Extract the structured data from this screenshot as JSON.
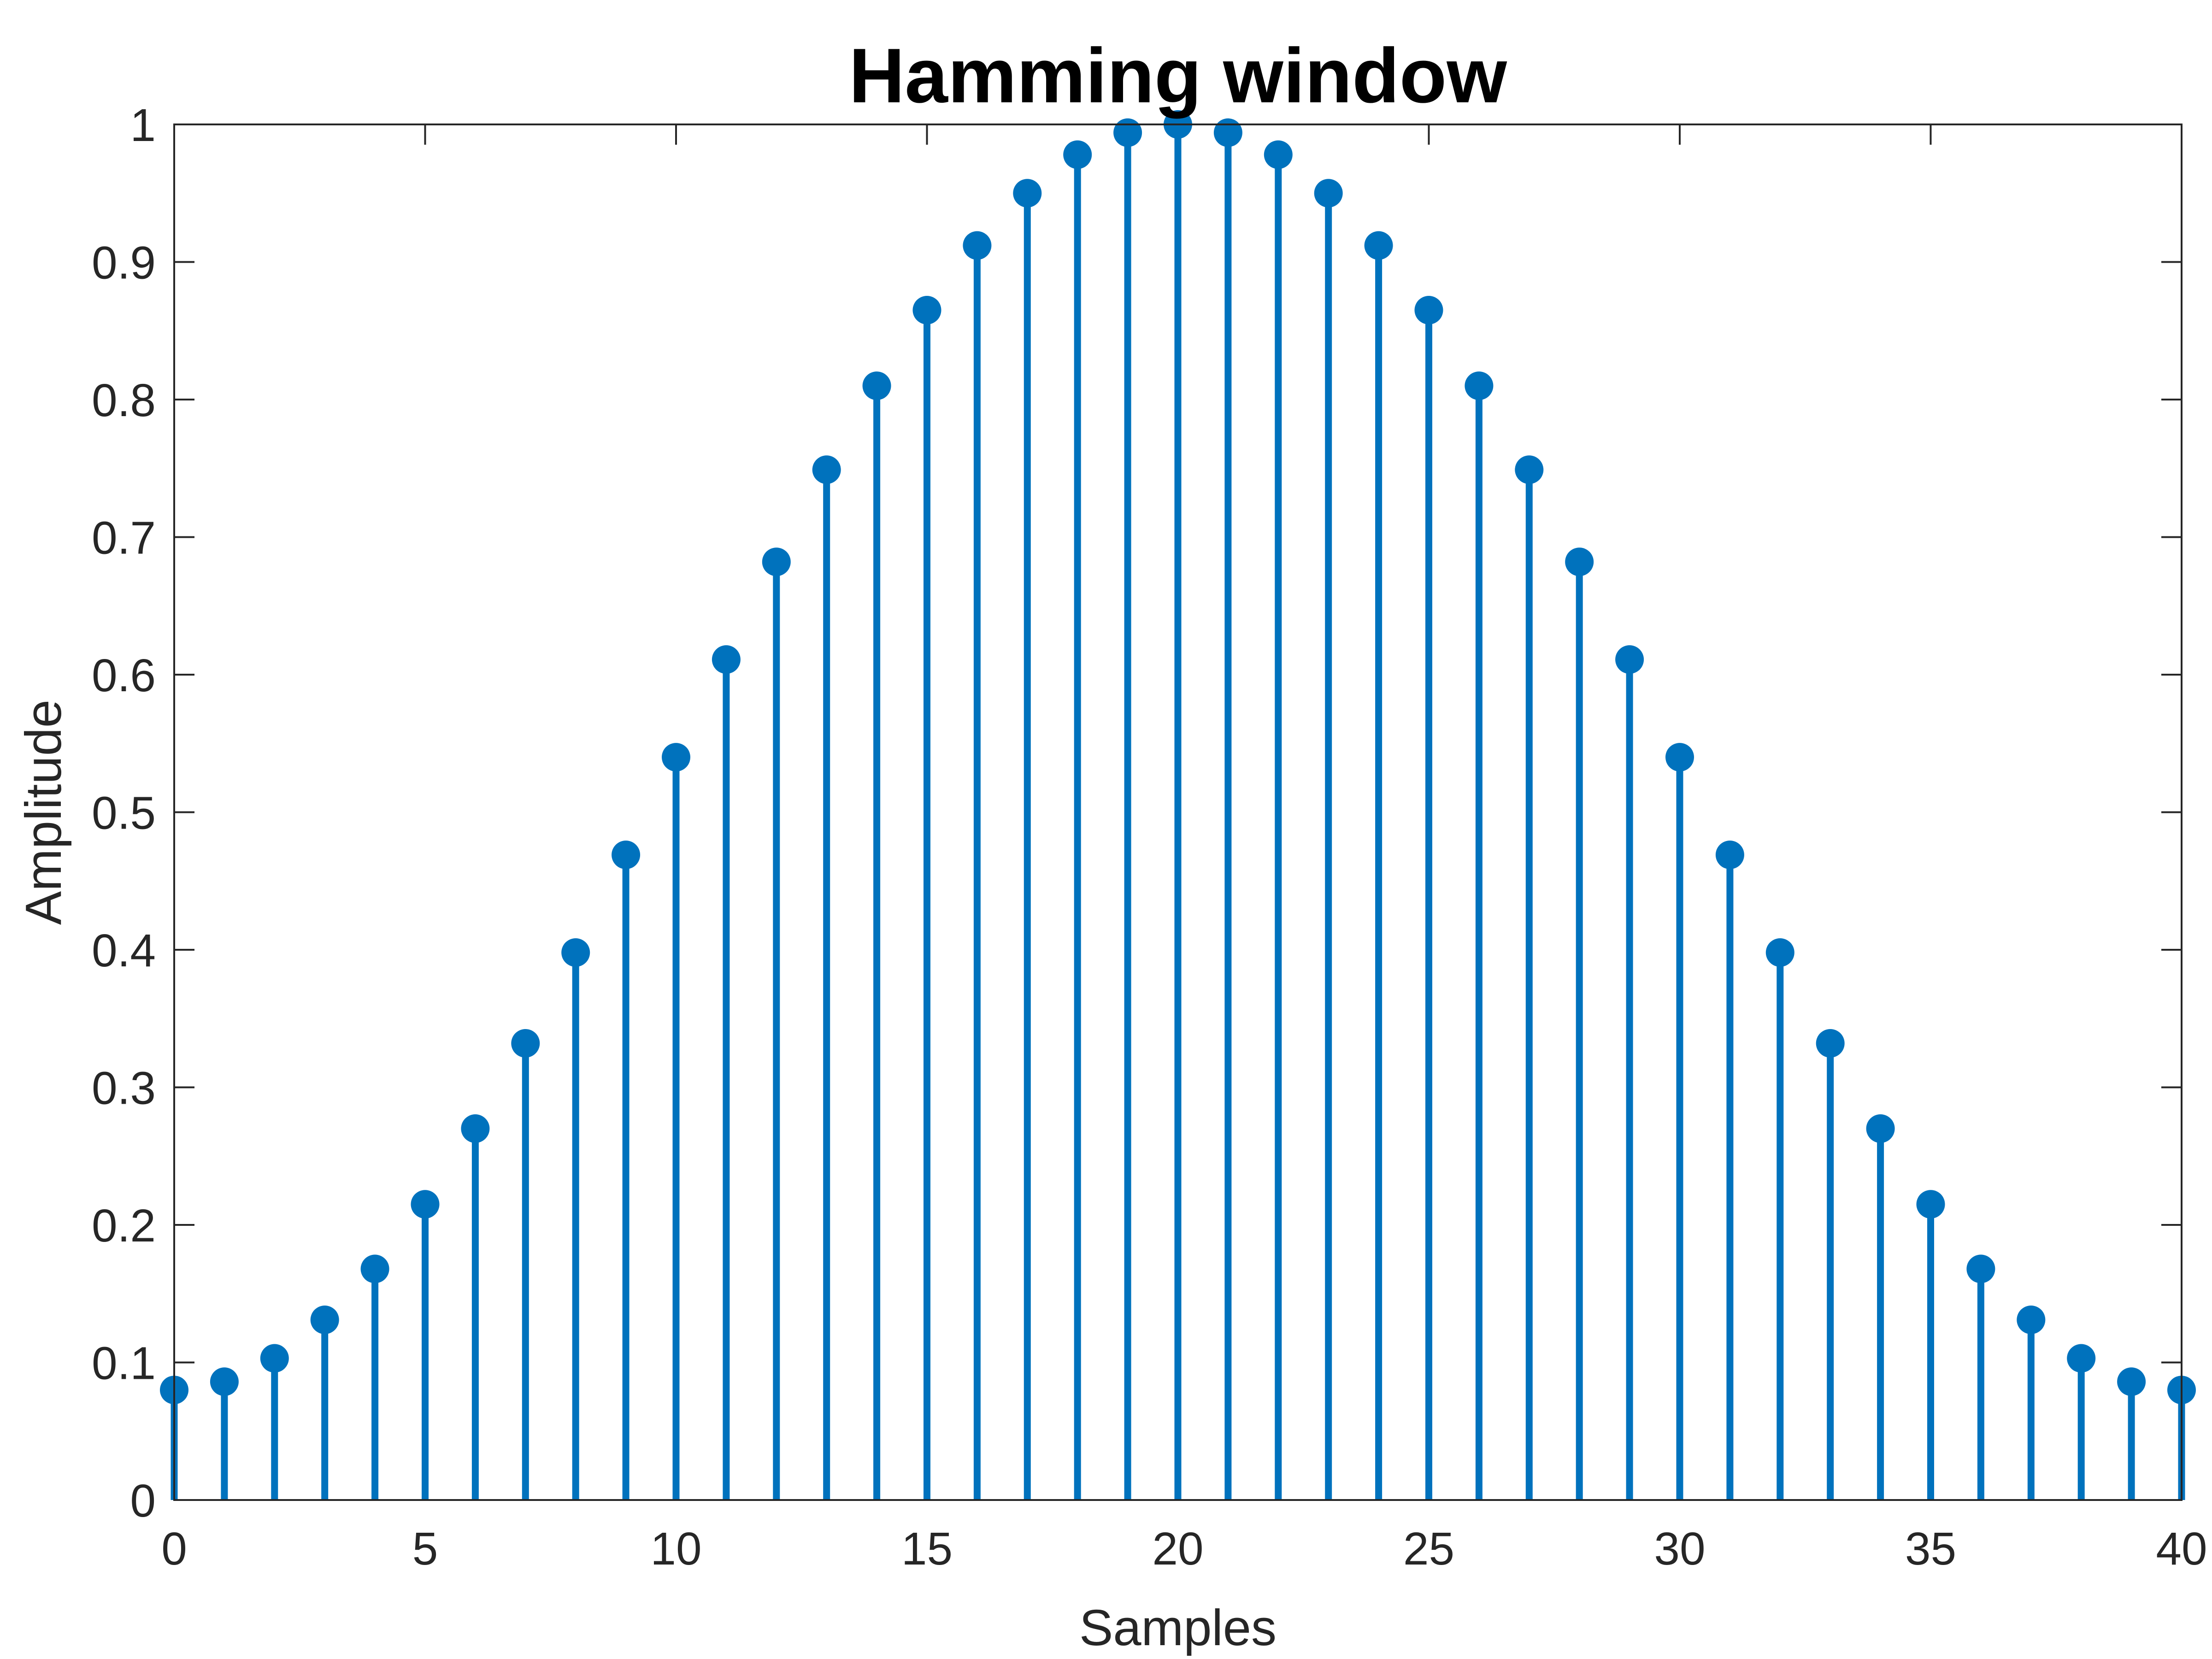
{
  "chart_data": {
    "type": "stem",
    "title": "Hamming window",
    "xlabel": "Samples",
    "ylabel": "Amplitude",
    "xlim": [
      0,
      40
    ],
    "ylim": [
      0,
      1
    ],
    "grid": false,
    "x_ticks": [
      0,
      5,
      10,
      15,
      20,
      25,
      30,
      35,
      40
    ],
    "x_tick_labels": [
      "0",
      "5",
      "10",
      "15",
      "20",
      "25",
      "30",
      "35",
      "40"
    ],
    "y_ticks": [
      0,
      0.1,
      0.2,
      0.3,
      0.4,
      0.5,
      0.6,
      0.7,
      0.8,
      0.9,
      1
    ],
    "y_tick_labels": [
      "0",
      "0.1",
      "0.2",
      "0.3",
      "0.4",
      "0.5",
      "0.6",
      "0.7",
      "0.8",
      "0.9",
      "1"
    ],
    "series": [
      {
        "color": "#0072BD",
        "x": [
          0,
          1,
          2,
          3,
          4,
          5,
          6,
          7,
          8,
          9,
          10,
          11,
          12,
          13,
          14,
          15,
          16,
          17,
          18,
          19,
          20,
          21,
          22,
          23,
          24,
          25,
          26,
          27,
          28,
          29,
          30,
          31,
          32,
          33,
          34,
          35,
          36,
          37,
          38,
          39,
          40
        ],
        "values": [
          0.08,
          0.086,
          0.103,
          0.131,
          0.168,
          0.215,
          0.27,
          0.332,
          0.398,
          0.469,
          0.54,
          0.611,
          0.682,
          0.749,
          0.81,
          0.865,
          0.912,
          0.95,
          0.978,
          0.994,
          1.0,
          0.994,
          0.978,
          0.95,
          0.912,
          0.865,
          0.81,
          0.749,
          0.682,
          0.611,
          0.54,
          0.469,
          0.398,
          0.332,
          0.27,
          0.215,
          0.168,
          0.131,
          0.103,
          0.086,
          0.08
        ]
      }
    ]
  }
}
